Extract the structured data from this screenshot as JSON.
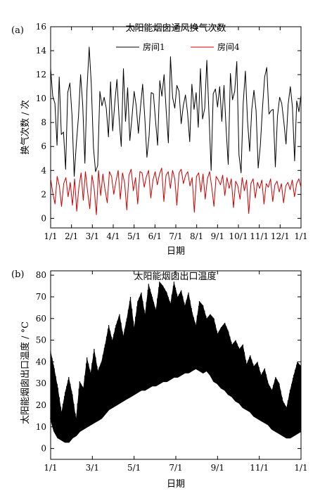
{
  "chart_data": [
    {
      "panel": "(a)",
      "type": "line",
      "title": "太阳能烟囱通风换气次数",
      "xlabel": "日期",
      "ylabel": "换气次数 / 次",
      "x_ticks": [
        "1/1",
        "2/1",
        "3/1",
        "4/1",
        "5/1",
        "6/1",
        "7/1",
        "8/1",
        "9/1",
        "10/1",
        "11/1",
        "12/1",
        "1/1"
      ],
      "y_ticks": [
        0,
        2,
        4,
        6,
        8,
        10,
        12,
        14,
        16
      ],
      "ylim": [
        -0.8,
        16
      ],
      "legend": "top-right",
      "series": [
        {
          "name": "房间1",
          "color": "#000000",
          "x_start": "1/1",
          "x_end": "1/1",
          "values": [
            12.5,
            10.2,
            9.6,
            6.1,
            11.8,
            7.0,
            7.2,
            4.1,
            10.5,
            11.3,
            8.6,
            3.5,
            6.2,
            8.5,
            12.0,
            9.5,
            4.6,
            10.8,
            14.3,
            11.2,
            5.9,
            3.9,
            4.4,
            10.6,
            9.4,
            10.1,
            9.2,
            6.8,
            11.4,
            7.3,
            9.7,
            11.6,
            8.3,
            6.0,
            12.5,
            8.1,
            10.9,
            6.5,
            8.4,
            10.6,
            9.4,
            7.1,
            9.3,
            11.2,
            8.4,
            5.1,
            6.9,
            10.5,
            10.4,
            8.2,
            6.1,
            11.5,
            10.2,
            12.0,
            9.0,
            6.3,
            13.5,
            10.1,
            9.2,
            11.1,
            10.6,
            7.9,
            9.4,
            10.3,
            8.8,
            6.4,
            11.2,
            9.1,
            10.5,
            7.6,
            12.5,
            8.3,
            9.2,
            13.2,
            8.6,
            4.0,
            10.4,
            10.8,
            9.3,
            11.0,
            8.1,
            11.1,
            7.5,
            4.5,
            12.1,
            9.9,
            10.6,
            13.1,
            5.3,
            3.8,
            9.6,
            12.3,
            8.2,
            5.6,
            9.1,
            10.7,
            9.0,
            4.2,
            6.1,
            9.2,
            11.8,
            12.6,
            8.7,
            9.0,
            9.1,
            4.3,
            8.5,
            10.1,
            9.6,
            8.0,
            6.2,
            9.5,
            11.0,
            9.3,
            4.8,
            9.8,
            8.9,
            10.3
          ]
        },
        {
          "name": "房间4",
          "color": "#cc0000",
          "x_start": "1/1",
          "x_end": "1/1",
          "values": [
            3.3,
            2.1,
            1.2,
            3.5,
            2.7,
            1.0,
            2.9,
            3.4,
            1.8,
            3.0,
            1.1,
            3.3,
            0.6,
            2.6,
            3.8,
            1.5,
            3.9,
            2.2,
            0.8,
            3.6,
            2.5,
            0.3,
            4.0,
            1.9,
            3.7,
            2.4,
            1.3,
            3.9,
            3.5,
            2.0,
            3.1,
            4.0,
            1.6,
            3.8,
            2.9,
            0.7,
            3.6,
            4.1,
            2.3,
            3.4,
            1.2,
            3.9,
            3.8,
            2.6,
            3.5,
            4.0,
            1.7,
            3.2,
            3.9,
            2.8,
            3.7,
            4.2,
            1.4,
            3.6,
            3.9,
            2.5,
            4.0,
            3.3,
            1.1,
            3.8,
            4.1,
            2.9,
            3.6,
            3.9,
            2.7,
            3.4,
            0.5,
            3.5,
            3.8,
            2.2,
            3.7,
            1.6,
            3.3,
            3.9,
            2.6,
            1.0,
            3.5,
            3.2,
            2.8,
            3.6,
            1.9,
            3.4,
            2.5,
            3.3,
            0.9,
            3.1,
            2.7,
            1.6,
            3.4,
            2.3,
            3.2,
            0.4,
            2.9,
            3.3,
            1.7,
            3.0,
            2.5,
            3.2,
            1.2,
            2.9,
            2.6,
            3.3,
            1.4,
            2.8,
            3.1,
            2.2,
            2.9,
            1.3,
            2.7,
            3.0,
            2.4,
            3.2,
            1.8,
            2.9,
            3.3,
            2.6
          ]
        }
      ]
    },
    {
      "panel": "(b)",
      "type": "line",
      "title": "太阳能烟囱出口温度",
      "xlabel": "日期",
      "ylabel": "太阳能烟囱出口温度 / °C",
      "x_ticks": [
        "1/1",
        "3/1",
        "5/1",
        "7/1",
        "9/1",
        "11/1",
        "1/1"
      ],
      "y_ticks": [
        0,
        10,
        20,
        30,
        40,
        50,
        60,
        70,
        80
      ],
      "ylim": [
        -5,
        82
      ],
      "series": [
        {
          "name": "",
          "color": "#000000",
          "x_start": "1/1",
          "x_end": "1/1",
          "daily_min": [
            14,
            8,
            5,
            4,
            3,
            3,
            5,
            6,
            8,
            9,
            10,
            11,
            12,
            13,
            14,
            16,
            18,
            19,
            20,
            21,
            22,
            23,
            24,
            25,
            26,
            27,
            27,
            28,
            29,
            29,
            30,
            31,
            31,
            32,
            33,
            33,
            34,
            35,
            35,
            36,
            37,
            36,
            35,
            36,
            34,
            31,
            30,
            28,
            27,
            25,
            24,
            22,
            21,
            19,
            18,
            17,
            15,
            14,
            13,
            12,
            11,
            9,
            8,
            7,
            6,
            5,
            5,
            6,
            7,
            8
          ],
          "daily_max": [
            45,
            37,
            28,
            17,
            26,
            33,
            25,
            14,
            31,
            28,
            42,
            35,
            46,
            36,
            40,
            48,
            57,
            50,
            57,
            62,
            52,
            60,
            70,
            56,
            68,
            72,
            62,
            76,
            70,
            64,
            77,
            75,
            72,
            67,
            77,
            70,
            73,
            66,
            72,
            63,
            57,
            68,
            66,
            60,
            62,
            60,
            53,
            56,
            58,
            54,
            48,
            50,
            46,
            48,
            39,
            43,
            38,
            40,
            34,
            37,
            30,
            27,
            33,
            30,
            22,
            19,
            27,
            34,
            40,
            38
          ]
        }
      ]
    }
  ]
}
